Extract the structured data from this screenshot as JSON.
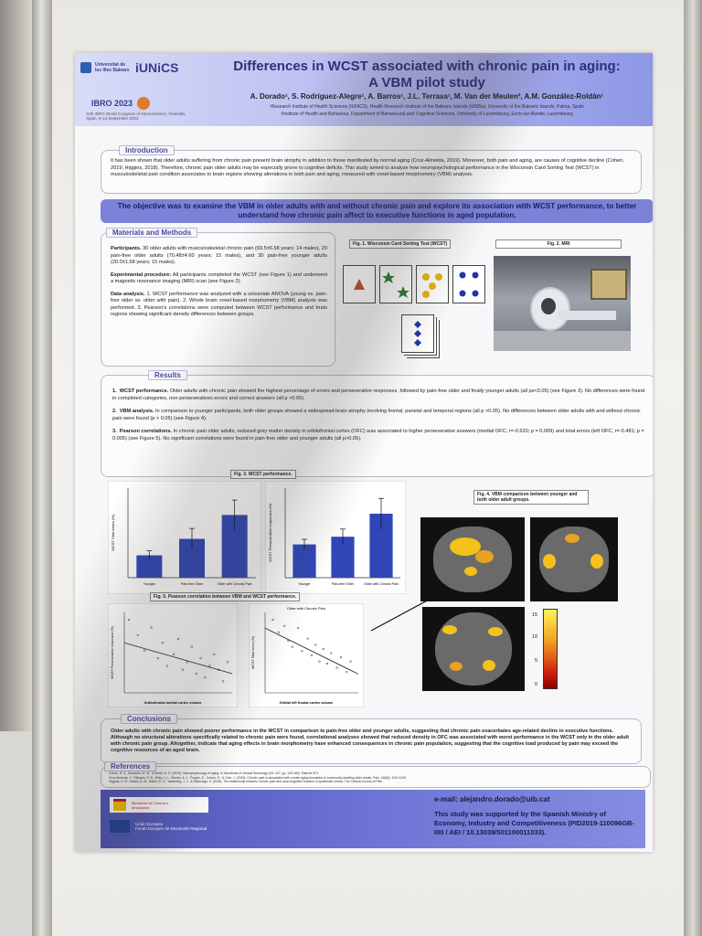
{
  "header": {
    "university": "Universitat de les Illes Balears",
    "institute_logo": "iUNiCS",
    "congress": "IBRO 2023",
    "congress_sub": "11th IBRO World Congress of Neuroscience, Granada, Spain, 9-13 September 2023",
    "title_line1": "Differences in WCST associated with chronic pain in aging:",
    "title_line2": "A VBM pilot study",
    "authors": "A. Dorado¹, S. Rodríguez-Alegre¹, A. Barros¹, J.L. Terrasa¹, M. Van der Meulen², A.M. González-Roldán¹",
    "affil1": "¹Research Institute of Health Sciences (IUNICS), Health Research Institute of the Balearic Islands (IdISBa), University of the Balearic Islands, Palma, Spain",
    "affil2": "²Institute of Health and Behaviour, Department of Behavioural and Cognitive Sciences, University of Luxembourg, Esch-sur-Alzette, Luxembourg"
  },
  "introduction": {
    "label": "Introduction",
    "text": "It has been shown that older adults suffering from chronic pain present brain atrophy in addition to those manifested by normal aging (Cruz-Almeida, 2019). Moreover, both pain and aging, are causes of cognitive decline (Cohen, 2019; Higgins, 2018). Therefore, chronic pain older adults may be especially prone to cognitive deficits. This study aimed to analyze how neuropsychological performance in the Wisconsin Card Sorting Test (WCST) in musculoskeletal pain condition associates to brain regions showing alterations in both pain and aging, measured with voxel-based morphometry (VBM) analysis."
  },
  "objective": "The objective was to examine the VBM in older adults with and without chronic pain and explore its association with WCST performance, to better understand how chronic pain affect to executive functions in aged population.",
  "methods": {
    "label": "Materials and Methods",
    "participants_label": "Participants.",
    "participants": "30 older adults with musculoskeletal chronic pain (69.5±6.58 years; 14 males), 29 pain-free older adults (70.48±4.60 years; 15 males), and 30 pain-free younger adults (20.0±1.58 years; 15 males).",
    "procedure_label": "Experimental procedure:",
    "procedure": "All participants completed the WCST (see Figure 1) and underwent a magnetic resonance imaging (MRI) scan (see Figure 2).",
    "analysis_label": "Data analysis.",
    "analysis": "1. WCST performance was analyzed with a univariate ANOVA (young vs. pain-free older vs. older with pain). 2. Whole brain voxel-based morphometry (VBM) analysis was performed. 3. Pearson's correlations were computed between WCST performance and brain regions showing significant density differences between groups."
  },
  "figures": {
    "fig1": "Fig. 1. Wisconsin Card Sorting Test (WCST)",
    "fig2": "Fig. 2. MRI",
    "fig3": "Fig. 3. WCST performance.",
    "fig4": "Fig. 4. VBM comparison between younger and both older adult groups.",
    "fig5": "Fig. 5. Pearson correlation between VBM and WCST performance."
  },
  "results": {
    "label": "Results",
    "r1_label": "WCST performance.",
    "r1": "Older adults with chronic pain showed the highest percentage of errors and perseverative responses, followed by pain-free older and finally younger adults (all ps<0.05) (see Figure 3). No differences were found in completed categories, non-perseveratives errors and correct answers (all p >0.05).",
    "r2_label": "VBM analysis.",
    "r2": "In comparison to younger participants, both older groups showed a widespread brain atrophy involving frontal, parietal and temporal regions (all p >0.05). No differences between older adults with and without chronic pain were found (p > 0.05) (see Figure 4).",
    "r3_label": "Pearson correlations.",
    "r3": "In chronic pain older adults, reduced grey matter density in orbitofrontal cortex (OFC) was associated to higher perseverative answers (medial OFC; r=-0.520; p = 0.009) and total errors (left OFC, r=-0.481; p = 0.005) (see Figure 5). No significant correlations were found in pain-free older and younger adults (all p>0.05)."
  },
  "chart_data": [
    {
      "type": "bar",
      "categories": [
        "Younger",
        "Pain-free Older",
        "Older with Chronic Pain"
      ],
      "values": [
        15,
        26,
        42
      ],
      "errors": [
        3,
        7,
        10
      ],
      "ylabel": "WCST Total errors (%)",
      "ylim": [
        0,
        60
      ],
      "color": "#2f47b8"
    },
    {
      "type": "bar",
      "categories": [
        "Younger",
        "Pain-free Older",
        "Older with Chronic Pain"
      ],
      "values": [
        13,
        16,
        25
      ],
      "errors": [
        2,
        3,
        6
      ],
      "ylabel": "WCST Perseverative responses (%)",
      "ylim": [
        0,
        35
      ],
      "color": "#2f47b8"
    },
    {
      "type": "scatter",
      "title": "",
      "xlabel": "Orbitofrontal medial cortex volume",
      "ylabel": "WCST Perseverative responses (%)",
      "points": [
        [
          0.2,
          38
        ],
        [
          0.24,
          30
        ],
        [
          0.27,
          22
        ],
        [
          0.3,
          34
        ],
        [
          0.33,
          18
        ],
        [
          0.35,
          26
        ],
        [
          0.37,
          14
        ],
        [
          0.4,
          20
        ],
        [
          0.42,
          28
        ],
        [
          0.44,
          12
        ],
        [
          0.46,
          16
        ],
        [
          0.48,
          24
        ],
        [
          0.5,
          10
        ],
        [
          0.52,
          18
        ],
        [
          0.54,
          8
        ],
        [
          0.56,
          14
        ],
        [
          0.58,
          20
        ],
        [
          0.6,
          12
        ],
        [
          0.62,
          6
        ],
        [
          0.64,
          16
        ]
      ],
      "trend": [
        [
          0.18,
          26
        ],
        [
          0.66,
          10
        ]
      ]
    },
    {
      "type": "scatter",
      "title": "Older with Chronic Pain",
      "xlabel": "Orbital left frontal cortex volume",
      "ylabel": "WCST Total errors (%)",
      "points": [
        [
          0.22,
          70
        ],
        [
          0.25,
          58
        ],
        [
          0.28,
          64
        ],
        [
          0.3,
          50
        ],
        [
          0.32,
          44
        ],
        [
          0.35,
          62
        ],
        [
          0.37,
          40
        ],
        [
          0.4,
          52
        ],
        [
          0.42,
          36
        ],
        [
          0.44,
          46
        ],
        [
          0.46,
          30
        ],
        [
          0.48,
          42
        ],
        [
          0.5,
          28
        ],
        [
          0.52,
          38
        ],
        [
          0.55,
          24
        ],
        [
          0.57,
          34
        ],
        [
          0.6,
          20
        ],
        [
          0.62,
          30
        ]
      ],
      "trend": [
        [
          0.18,
          62
        ],
        [
          0.66,
          18
        ]
      ]
    }
  ],
  "colorbar_ticks": [
    "15",
    "10",
    "5",
    "0"
  ],
  "conclusions": {
    "label": "Conclusions",
    "text": "Older adults with chronic pain showed poorer performance in the WCST in comparison to pain-free older and younger adults, suggesting that chronic pain exacerbates age-related decline in executive functions. Although no structural alterations specifically related to chronic pain were found, correlational analyses showed that reduced density in OFC was associated with worst performance in the WCST only in the older adult with chronic pain group. Altogether, indicate that aging effects in brain morphometry have enhanced consequences in chronic pain population, suggesting that the cognitive load produced by pain may exceed the cognitive resources of an aged brain."
  },
  "references": {
    "label": "References",
    "r1": "Cohen, R. A., Marsiske, M. M., & Smith, G. E. (2019). Neuropsychology of aging. In Handbook of Clinical Neurology (Vol. 167, pp. 149-180). Elsevier B.V.",
    "r2": "Cruz-Almeida, Y., Fillingim, R. B., Riley, J. L., Woods, A. J., Porges, E., Cohen, R., & Cole, J. (2019). Chronic pain is associated with a brain aging biomarker in community-dwelling older adults. Pain, 160(5), 1119-1130.",
    "r3": "Higgins, D. M., Martin, A. M., Baker, D. G., Vasterling, J. J., & Risbrough, V. (2018). The relationship between chronic pain and neurocognitive function: a systematic review. The Clinical Journal of Pain."
  },
  "footer": {
    "email": "e-mail: alejandro.dorado@uib.cat",
    "funding": "This study was supported by the Spanish Ministry of Economy, Industry and Competitiveness (PID2019-110096GB-I00 / AEI / 10.13039/501100011033).",
    "ministry": "Ministerio de Ciencia e Innovación",
    "eu": "Unión Europea",
    "eu_fund": "Fondo Europeo de Desarrollo Regional"
  }
}
